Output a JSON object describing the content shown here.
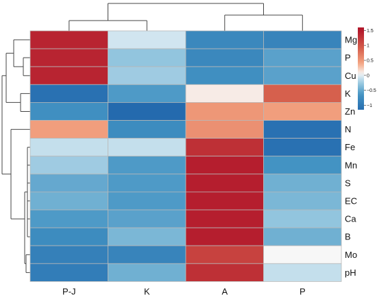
{
  "chart_data": {
    "type": "heatmap",
    "title": "",
    "xlabel": "",
    "ylabel": "",
    "columns": [
      "P-J",
      "K",
      "A",
      "P"
    ],
    "rows": [
      "Mg",
      "P",
      "Cu",
      "K",
      "Zn",
      "N",
      "Fe",
      "Mn",
      "S",
      "EC",
      "Ca",
      "B",
      "Mo",
      "pH"
    ],
    "values": [
      [
        1.4,
        -0.05,
        -0.8,
        -0.85
      ],
      [
        1.4,
        -0.3,
        -0.8,
        -0.55
      ],
      [
        1.4,
        -0.25,
        -0.7,
        -0.55
      ],
      [
        -1.1,
        -0.6,
        0.1,
        0.9
      ],
      [
        -0.7,
        -1.2,
        0.5,
        0.45
      ],
      [
        0.45,
        -0.75,
        0.55,
        -1.1
      ],
      [
        -0.1,
        -0.1,
        1.3,
        -1.1
      ],
      [
        -0.25,
        -0.6,
        1.45,
        -0.65
      ],
      [
        -0.5,
        -0.6,
        1.45,
        -0.45
      ],
      [
        -0.45,
        -0.6,
        1.45,
        -0.4
      ],
      [
        -0.6,
        -0.55,
        1.45,
        -0.3
      ],
      [
        -0.75,
        -0.4,
        1.45,
        -0.45
      ],
      [
        -0.9,
        -0.85,
        1.15,
        0.05
      ],
      [
        -0.95,
        -0.45,
        1.3,
        -0.1
      ]
    ],
    "colorbar": {
      "min": -1.0,
      "max": 1.5,
      "ticks": [
        "1.5",
        "1",
        "0.5",
        "0",
        "−0.5",
        "−1"
      ],
      "tick_values": [
        1.5,
        1.0,
        0.5,
        0.0,
        -0.5,
        -1.0
      ],
      "stops": [
        {
          "v": -1.25,
          "color": "#2166ac"
        },
        {
          "v": -0.65,
          "color": "#4393c3"
        },
        {
          "v": -0.3,
          "color": "#92c5de"
        },
        {
          "v": -0.05,
          "color": "#d1e5f0"
        },
        {
          "v": 0.05,
          "color": "#f7f7f7"
        },
        {
          "v": 0.4,
          "color": "#f4a582"
        },
        {
          "v": 0.9,
          "color": "#d6604d"
        },
        {
          "v": 1.5,
          "color": "#b2182b"
        }
      ],
      "placement": "top-right"
    },
    "dendrograms": {
      "columns": true,
      "rows": true
    }
  }
}
